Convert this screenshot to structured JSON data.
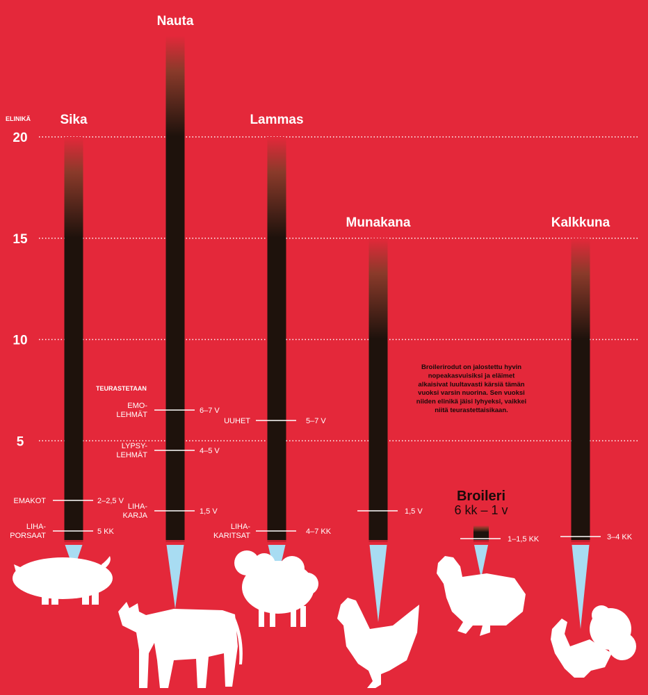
{
  "chart_data": {
    "type": "bar",
    "yaxis": {
      "title": "ELINIKÄ",
      "ticks": [
        20,
        15,
        10,
        5
      ],
      "ylim": [
        0,
        20
      ],
      "grid": true
    },
    "section_title": "TEURASTETAAN",
    "categories": [
      "Sika",
      "Nauta",
      "Lammas",
      "Munakana",
      "Broileri",
      "Kalkkuna"
    ],
    "lifespans": [
      {
        "animal": "Sika",
        "value": 20
      },
      {
        "animal": "Nauta",
        "value": 25
      },
      {
        "animal": "Lammas",
        "value": 20
      },
      {
        "animal": "Munakana",
        "value": 15
      },
      {
        "animal": "Broileri",
        "value_text": "6 kk – 1 v"
      },
      {
        "animal": "Kalkkuna",
        "value": 15
      }
    ],
    "slaughter_markers": [
      {
        "animal": "Sika",
        "label": "EMAKOT",
        "age_text": "2–2,5 V",
        "age_years": 2.25
      },
      {
        "animal": "Sika",
        "label": "LIHA-\nPORSAAT",
        "age_text": "5 KK",
        "age_years": 0.42
      },
      {
        "animal": "Nauta",
        "label": "EMO-\nLEHMÄT",
        "age_text": "6–7 V",
        "age_years": 6.5
      },
      {
        "animal": "Nauta",
        "label": "LYPSY-\nLEHMÄT",
        "age_text": "4–5 V",
        "age_years": 4.5
      },
      {
        "animal": "Nauta",
        "label": "LIHA-\nKARJA",
        "age_text": "1,5 V",
        "age_years": 1.5
      },
      {
        "animal": "Lammas",
        "label": "UUHET",
        "age_text": "5–7 V",
        "age_years": 6
      },
      {
        "animal": "Lammas",
        "label": "LIHA-\nKARITSAT",
        "age_text": "4–7 KK",
        "age_years": 0.46
      },
      {
        "animal": "Munakana",
        "label": "",
        "age_text": "1,5 V",
        "age_years": 1.5
      },
      {
        "animal": "Broileri",
        "label": "",
        "age_text": "1–1,5 KK",
        "age_years": 0.1
      },
      {
        "animal": "Kalkkuna",
        "label": "",
        "age_text": "3–4 KK",
        "age_years": 0.29
      }
    ],
    "broiler": {
      "name": "Broileri",
      "range": "6 kk – 1 v"
    },
    "note": "Broilerirodut on jalostettu hyvin nopeakasvuisiksi ja eläimet alkaisivat luultavasti kärsiä tämän vuoksi varsin nuorina. Sen vuoksi niiden elinikä jäisi lyhyeksi, vaikkei niitä teurastettaisikaan.",
    "colors": {
      "background": "#e4283a",
      "bar": "#1e120c",
      "needle": "#a8dcf2",
      "text": "#ffffff"
    }
  }
}
